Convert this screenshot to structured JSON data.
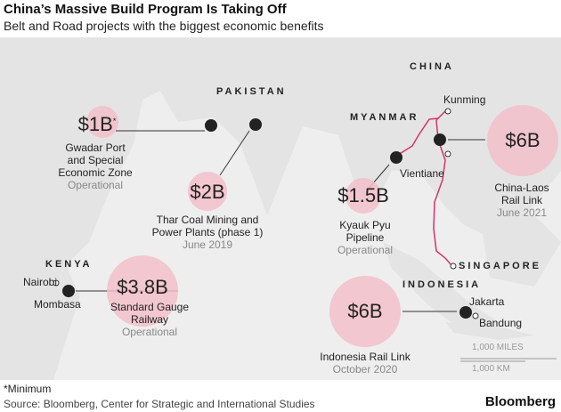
{
  "header": {
    "title": "China’s Massive Build Program Is Taking Off",
    "subtitle": "Belt and Road projects with the biggest economic benefits"
  },
  "colors": {
    "bubble": "#f2bfc9",
    "rail_line": "#d6336c",
    "land": "#e4e4e4",
    "sea": "#eeeeee"
  },
  "countries": [
    "CHINA",
    "PAKISTAN",
    "MYANMAR",
    "KENYA",
    "INDONESIA",
    "SINGAPORE"
  ],
  "cities": [
    "Kunming",
    "Vientiane",
    "Nairobi",
    "Mombasa",
    "Jakarta",
    "Bandung"
  ],
  "projects": [
    {
      "amount": "$1B",
      "footnote_mark": "*",
      "name_lines": [
        "Gwadar Port",
        "and Special",
        "Economic Zone"
      ],
      "status": "Operational",
      "icon": "port-icon"
    },
    {
      "amount": "$2B",
      "name_lines": [
        "Thar Coal Mining and",
        "Power Plants (phase 1)"
      ],
      "status": "June 2019",
      "icon": "factory-icon"
    },
    {
      "amount": "$3.8B",
      "name_lines": [
        "Standard Gauge",
        "Railway"
      ],
      "status": "Operational",
      "icon": "train-icon"
    },
    {
      "amount": "$1.5B",
      "name_lines": [
        "Kyauk Pyu",
        "Pipeline"
      ],
      "status": "Operational",
      "icon": "oil-drop-icon"
    },
    {
      "amount": "$6B",
      "name_lines": [
        "China-Laos",
        "Rail Link"
      ],
      "status": "June 2021",
      "icon": "train-icon"
    },
    {
      "amount": "$6B",
      "name_lines": [
        "Indonesia Rail Link"
      ],
      "status": "October 2020",
      "icon": "train-icon"
    }
  ],
  "scale": {
    "miles": "1,000 MILES",
    "km": "1,000 KM"
  },
  "footer": {
    "note": "*Minimum",
    "source": "Source: Bloomberg, Center for Strategic and International Studies",
    "brand": "Bloomberg"
  }
}
